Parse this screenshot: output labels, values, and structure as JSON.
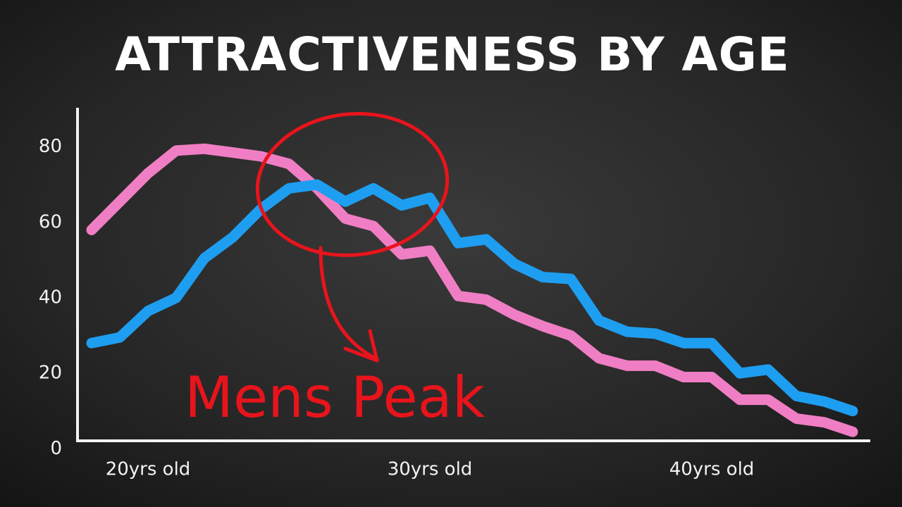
{
  "chart_data": {
    "type": "line",
    "title": "ATTRACTIVENESS BY AGE",
    "annotation": "Mens Peak",
    "x": [
      18,
      19,
      20,
      21,
      22,
      23,
      24,
      25,
      26,
      27,
      28,
      29,
      30,
      31,
      32,
      33,
      34,
      35,
      36,
      37,
      38,
      39,
      40,
      41,
      42,
      43,
      44,
      45
    ],
    "series": [
      {
        "color": "#f07ec4",
        "values": [
          58,
          65.5,
          73,
          79,
          79.5,
          78.5,
          77.5,
          75.5,
          69,
          61,
          59,
          51.5,
          52.5,
          40.5,
          39.5,
          35.5,
          32.5,
          30,
          24,
          22,
          22,
          19,
          19,
          13,
          13,
          8,
          7,
          4.5
        ]
      },
      {
        "color": "#1e9ef0",
        "values": [
          28,
          29.5,
          36.5,
          40,
          50.5,
          56,
          63.5,
          69,
          70,
          65.5,
          69,
          64.5,
          66.5,
          54.5,
          55.5,
          49,
          45.5,
          45,
          34,
          31,
          30.5,
          28,
          28,
          20,
          21,
          14,
          12.5,
          10
        ]
      }
    ],
    "xlim": [
      17.5,
      45.6
    ],
    "ylim": [
      -2,
      90
    ],
    "xticks": [
      {
        "value": 20,
        "label": "20yrs old"
      },
      {
        "value": 30,
        "label": "30yrs old"
      },
      {
        "value": 40,
        "label": "40yrs old"
      }
    ],
    "yticks": [
      0,
      20,
      40,
      60,
      80
    ]
  }
}
